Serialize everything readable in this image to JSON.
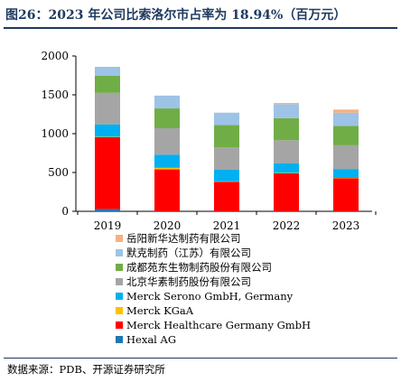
{
  "title": "图26：2023 年公司比索洛尔市占率为 18.94%（百万元）",
  "source": "数据来源：PDB、开源证券研究所",
  "chart_data": {
    "type": "bar",
    "stacked": true,
    "categories": [
      "2019",
      "2020",
      "2021",
      "2022",
      "2023"
    ],
    "ylim": [
      0,
      2000
    ],
    "yticks": [
      0,
      500,
      1000,
      1500,
      2000
    ],
    "grid": false,
    "legend_position": "bottom",
    "series": [
      {
        "name": "Hexal AG",
        "color": "#1f77b4",
        "values": [
          30,
          0,
          0,
          0,
          0
        ]
      },
      {
        "name": "Merck Healthcare Germany GmbH",
        "color": "#ff0000",
        "values": [
          925,
          540,
          380,
          490,
          425
        ]
      },
      {
        "name": "Merck KGaA",
        "color": "#ffc000",
        "values": [
          5,
          20,
          5,
          5,
          5
        ]
      },
      {
        "name": "Merck Serono GmbH, Germany",
        "color": "#00b0f0",
        "values": [
          160,
          170,
          150,
          125,
          115
        ]
      },
      {
        "name": "北京华素制药股份有限公司",
        "color": "#a5a5a5",
        "values": [
          405,
          340,
          290,
          295,
          305
        ]
      },
      {
        "name": "成都苑东生物制药股份有限公司",
        "color": "#70ad47",
        "values": [
          220,
          255,
          285,
          285,
          250
        ]
      },
      {
        "name": "默克制药（江苏）有限公司",
        "color": "#9dc3e6",
        "values": [
          115,
          165,
          160,
          180,
          170
        ]
      },
      {
        "name": "岳阳新华达制药有限公司",
        "color": "#f4b183",
        "values": [
          0,
          0,
          0,
          15,
          40
        ]
      }
    ]
  }
}
